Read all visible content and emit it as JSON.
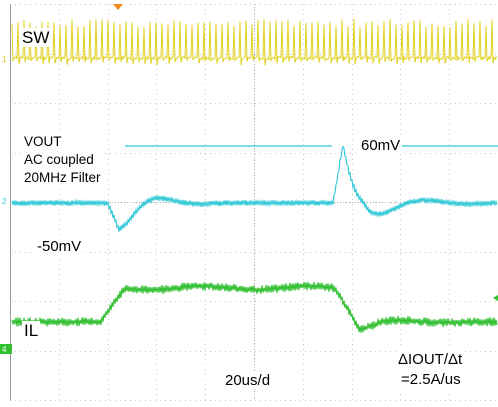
{
  "chart_data": {
    "type": "line",
    "title": "",
    "timebase": "20us/d",
    "grid": true,
    "series": [
      {
        "name": "SW",
        "color": "#e0d21c",
        "kind": "switching"
      },
      {
        "name": "VOUT",
        "color": "#2ec8d8",
        "kind": "vout",
        "undershoot": "-50mV",
        "overshoot": "60mV"
      },
      {
        "name": "IL",
        "color": "#2fbf2f",
        "kind": "current"
      }
    ],
    "annotations": {
      "sw": "SW",
      "vout_line1": "VOUT",
      "vout_line2": "AC coupled",
      "vout_line3": "20MHz Filter",
      "undershoot": "-50mV",
      "overshoot": "60mV",
      "il": "IL",
      "timebase": "20us/d",
      "slew_line1": "ΔIOUT/Δt",
      "slew_line2": "=2.5A/us"
    },
    "channel_markers": [
      "1",
      "2",
      "4"
    ]
  }
}
